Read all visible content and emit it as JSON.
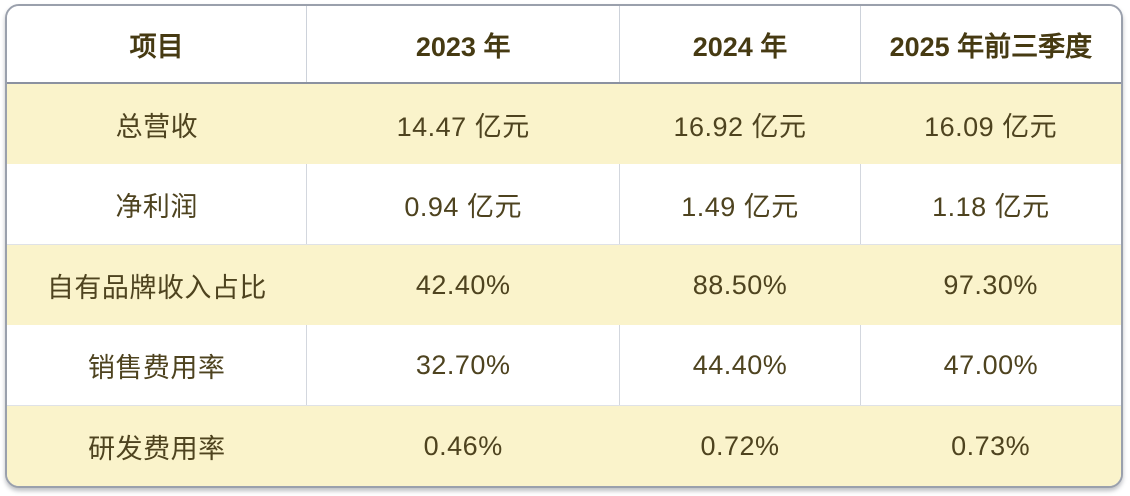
{
  "chart_data": {
    "type": "table",
    "columns": [
      "项目",
      "2023 年",
      "2024 年",
      "2025 年前三季度"
    ],
    "rows": [
      {
        "label": "总营收",
        "values": [
          "14.47 亿元",
          "16.92 亿元",
          "16.09 亿元"
        ]
      },
      {
        "label": "净利润",
        "values": [
          "0.94 亿元",
          "1.49 亿元",
          "1.18 亿元"
        ]
      },
      {
        "label": "自有品牌收入占比",
        "values": [
          "42.40%",
          "88.50%",
          "97.30%"
        ]
      },
      {
        "label": "销售费用率",
        "values": [
          "32.70%",
          "44.40%",
          "47.00%"
        ]
      },
      {
        "label": "研发费用率",
        "values": [
          "0.46%",
          "0.72%",
          "0.73%"
        ]
      }
    ],
    "layout_hints": {
      "banded_rows": "odd data rows highlighted",
      "header_position": "top",
      "grid": "column dividers visible on white rows only"
    }
  },
  "colors": {
    "row_highlight": "#FAF3CB",
    "row_plain": "#FFFFFF",
    "body_text": "#4E431F",
    "header_text": "#463A12",
    "outer_border": "#9AA0AC",
    "header_rule": "#8B91A0",
    "column_divider": "#CDD2DA"
  }
}
